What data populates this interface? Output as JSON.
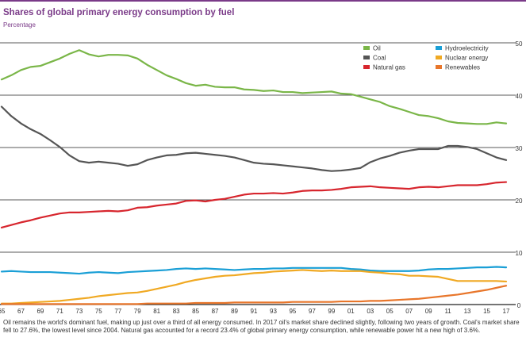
{
  "header": {
    "title": "Shares of global primary energy consumption by fuel",
    "subtitle": "Percentage"
  },
  "caption": "Oil remains the world's dominant fuel, making up just over a third of all energy consumed. In 2017 oil's market share declined slightly, following two years of growth. Coal's market share fell to 27.6%, the lowest level since 2004. Natural gas accounted for a record 23.4% of global primary energy consumption, while renewable power hit a new high of 3.6%.",
  "colors": {
    "oil": "#7ab648",
    "coal": "#555555",
    "natural_gas": "#d7262e",
    "hydroelectricity": "#1a9fd6",
    "nuclear": "#f0a923",
    "renewables": "#e8762b",
    "grid": "#222222",
    "accent": "#7a3a88"
  },
  "chart_data": {
    "type": "line",
    "title": "Shares of global primary energy consumption by fuel",
    "ylabel": "Percentage",
    "xlabel": "",
    "xlim": [
      1965,
      2017
    ],
    "ylim": [
      0,
      50
    ],
    "yticks": [
      0,
      10,
      20,
      30,
      40,
      50
    ],
    "grid": true,
    "legend_position": "top-right",
    "x": [
      1965,
      1966,
      1967,
      1968,
      1969,
      1970,
      1971,
      1972,
      1973,
      1974,
      1975,
      1976,
      1977,
      1978,
      1979,
      1980,
      1981,
      1982,
      1983,
      1984,
      1985,
      1986,
      1987,
      1988,
      1989,
      1990,
      1991,
      1992,
      1993,
      1994,
      1995,
      1996,
      1997,
      1998,
      1999,
      2000,
      2001,
      2002,
      2003,
      2004,
      2005,
      2006,
      2007,
      2008,
      2009,
      2010,
      2011,
      2012,
      2013,
      2014,
      2015,
      2016,
      2017
    ],
    "xtick_labels": [
      "65",
      "67",
      "69",
      "71",
      "73",
      "75",
      "77",
      "79",
      "81",
      "83",
      "85",
      "87",
      "89",
      "91",
      "93",
      "95",
      "97",
      "99",
      "01",
      "03",
      "05",
      "07",
      "09",
      "11",
      "13",
      "15",
      "17"
    ],
    "series": [
      {
        "name": "Oil",
        "key": "oil",
        "values": [
          43,
          43.8,
          44.8,
          45.4,
          45.6,
          46.3,
          47.0,
          47.9,
          48.6,
          47.8,
          47.4,
          47.7,
          47.7,
          47.6,
          47.0,
          45.8,
          44.8,
          43.8,
          43.1,
          42.3,
          41.8,
          42.0,
          41.6,
          41.5,
          41.5,
          41.1,
          41.0,
          40.8,
          40.9,
          40.6,
          40.6,
          40.4,
          40.5,
          40.6,
          40.7,
          40.3,
          40.2,
          39.7,
          39.2,
          38.7,
          37.9,
          37.4,
          36.8,
          36.2,
          36.0,
          35.6,
          35.0,
          34.7,
          34.6,
          34.5,
          34.5,
          34.8,
          34.6
        ]
      },
      {
        "name": "Coal",
        "key": "coal",
        "values": [
          37.8,
          36.0,
          34.6,
          33.5,
          32.6,
          31.4,
          30.1,
          28.5,
          27.4,
          27.1,
          27.3,
          27.1,
          26.9,
          26.5,
          26.8,
          27.6,
          28.1,
          28.5,
          28.6,
          28.9,
          29.0,
          28.8,
          28.6,
          28.4,
          28.1,
          27.6,
          27.1,
          26.9,
          26.8,
          26.6,
          26.4,
          26.2,
          26.0,
          25.7,
          25.5,
          25.6,
          25.8,
          26.1,
          27.2,
          27.9,
          28.4,
          29.0,
          29.4,
          29.7,
          29.7,
          29.7,
          30.3,
          30.3,
          30.1,
          29.7,
          28.9,
          28.1,
          27.6
        ]
      },
      {
        "name": "Natural gas",
        "key": "natural_gas",
        "values": [
          14.7,
          15.2,
          15.7,
          16.1,
          16.6,
          17.0,
          17.4,
          17.6,
          17.6,
          17.7,
          17.8,
          17.9,
          17.8,
          18.0,
          18.5,
          18.6,
          18.9,
          19.1,
          19.3,
          19.8,
          19.9,
          19.7,
          20.0,
          20.2,
          20.6,
          21.0,
          21.2,
          21.2,
          21.3,
          21.2,
          21.4,
          21.7,
          21.8,
          21.8,
          21.9,
          22.1,
          22.4,
          22.5,
          22.6,
          22.4,
          22.3,
          22.2,
          22.1,
          22.4,
          22.5,
          22.4,
          22.6,
          22.8,
          22.8,
          22.8,
          23.0,
          23.3,
          23.4
        ]
      },
      {
        "name": "Hydroelectricity",
        "key": "hydroelectricity",
        "values": [
          6.3,
          6.4,
          6.3,
          6.2,
          6.2,
          6.2,
          6.1,
          6.0,
          5.9,
          6.1,
          6.2,
          6.1,
          6.0,
          6.2,
          6.3,
          6.4,
          6.5,
          6.6,
          6.8,
          6.9,
          6.8,
          6.9,
          6.8,
          6.7,
          6.6,
          6.7,
          6.8,
          6.8,
          6.9,
          6.9,
          7.0,
          7.0,
          7.0,
          7.0,
          7.0,
          7.0,
          6.8,
          6.7,
          6.5,
          6.4,
          6.4,
          6.4,
          6.4,
          6.5,
          6.7,
          6.8,
          6.8,
          6.9,
          7.0,
          7.1,
          7.1,
          7.2,
          7.1
        ]
      },
      {
        "name": "Nuclear energy",
        "key": "nuclear",
        "values": [
          0.2,
          0.2,
          0.3,
          0.4,
          0.5,
          0.6,
          0.7,
          0.9,
          1.1,
          1.3,
          1.6,
          1.8,
          2.0,
          2.2,
          2.3,
          2.6,
          3.0,
          3.4,
          3.8,
          4.3,
          4.7,
          5.0,
          5.3,
          5.5,
          5.6,
          5.8,
          6.0,
          6.1,
          6.3,
          6.4,
          6.5,
          6.6,
          6.5,
          6.4,
          6.5,
          6.4,
          6.4,
          6.4,
          6.2,
          6.1,
          5.9,
          5.8,
          5.5,
          5.5,
          5.4,
          5.3,
          4.9,
          4.5,
          4.5,
          4.5,
          4.5,
          4.5,
          4.4
        ]
      },
      {
        "name": "Renewables",
        "key": "renewables",
        "values": [
          0.1,
          0.1,
          0.1,
          0.1,
          0.1,
          0.1,
          0.1,
          0.1,
          0.1,
          0.1,
          0.1,
          0.1,
          0.1,
          0.1,
          0.1,
          0.2,
          0.2,
          0.2,
          0.2,
          0.2,
          0.3,
          0.3,
          0.3,
          0.3,
          0.4,
          0.4,
          0.4,
          0.4,
          0.4,
          0.4,
          0.5,
          0.5,
          0.5,
          0.5,
          0.5,
          0.6,
          0.6,
          0.6,
          0.7,
          0.7,
          0.8,
          0.9,
          1.0,
          1.1,
          1.3,
          1.5,
          1.7,
          1.9,
          2.2,
          2.5,
          2.8,
          3.2,
          3.6
        ]
      }
    ],
    "legend": [
      {
        "label": "Oil",
        "key": "oil"
      },
      {
        "label": "Coal",
        "key": "coal"
      },
      {
        "label": "Natural gas",
        "key": "natural_gas"
      },
      {
        "label": "Hydroelectricity",
        "key": "hydroelectricity"
      },
      {
        "label": "Nuclear energy",
        "key": "nuclear"
      },
      {
        "label": "Renewables",
        "key": "renewables"
      }
    ]
  }
}
